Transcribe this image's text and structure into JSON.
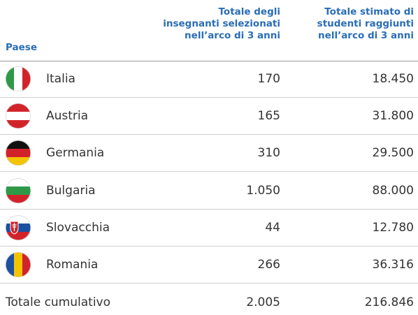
{
  "table": {
    "header": [
      "Paese",
      "Totale degli\ninsegnanti selezionati\nnell’arco di 3 anni",
      "Totale stimato di\nstudenti raggiunti\nnell’arco di 3 anni"
    ],
    "rows": [
      [
        "Italia",
        "170",
        "18.450"
      ],
      [
        "Austria",
        "165",
        "31.800"
      ],
      [
        "Germania",
        "310",
        "29.500"
      ],
      [
        "Bulgaria",
        "1.050",
        "88.000"
      ],
      [
        "Slovacchia",
        "44",
        "12.780"
      ],
      [
        "Romania",
        "266",
        "36.316"
      ]
    ],
    "total": [
      "Totale cumulativo",
      "2.005",
      "216.846"
    ]
  }
}
